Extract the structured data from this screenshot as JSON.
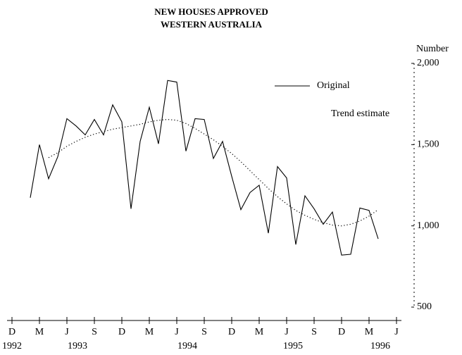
{
  "chart_data": {
    "type": "line",
    "title": "NEW HOUSES APPROVED",
    "subtitle": "WESTERN AUSTRALIA",
    "y_axis_label": "Number",
    "categories": [
      "D",
      null,
      null,
      "M",
      null,
      null,
      "J",
      null,
      null,
      "S",
      null,
      null,
      "D",
      null,
      null,
      "M",
      null,
      null,
      "J",
      null,
      null,
      "S",
      null,
      null,
      "D",
      null,
      null,
      "M",
      null,
      null,
      "J",
      null,
      null,
      "S",
      null,
      null,
      "D",
      null,
      null,
      "M",
      null,
      null,
      "J"
    ],
    "year_labels": [
      "1992",
      "1993",
      "1994",
      "1995",
      "1996"
    ],
    "series": [
      {
        "name": "Original",
        "color": "#000000",
        "style": "solid",
        "values": [
          null,
          null,
          1173,
          1500,
          1290,
          1425,
          1660,
          1615,
          1560,
          1655,
          1560,
          1745,
          1640,
          1105,
          1520,
          1730,
          1505,
          1895,
          1885,
          1460,
          1660,
          1655,
          1415,
          1520,
          1305,
          1100,
          1205,
          1250,
          955,
          1365,
          1295,
          885,
          1185,
          1105,
          1010,
          1085,
          820,
          825,
          1110,
          1095,
          920,
          null,
          null
        ]
      },
      {
        "name": "Trend estimate",
        "color": "#000000",
        "style": "dotted",
        "values": [
          null,
          null,
          null,
          null,
          1420,
          1450,
          1490,
          1520,
          1545,
          1565,
          1580,
          1595,
          1605,
          1615,
          1625,
          1640,
          1650,
          1655,
          1650,
          1630,
          1600,
          1565,
          1530,
          1490,
          1445,
          1395,
          1340,
          1285,
          1230,
          1180,
          1135,
          1095,
          1065,
          1040,
          1020,
          1005,
          1000,
          1010,
          1030,
          1060,
          1100,
          null,
          null
        ]
      }
    ],
    "ylim": [
      500,
      2000
    ],
    "yticks": [
      500,
      {
        "value": 1000,
        "label": "1,000"
      },
      {
        "value": 1500,
        "label": "1,500"
      },
      {
        "value": 2000,
        "label": "2,000"
      }
    ]
  }
}
